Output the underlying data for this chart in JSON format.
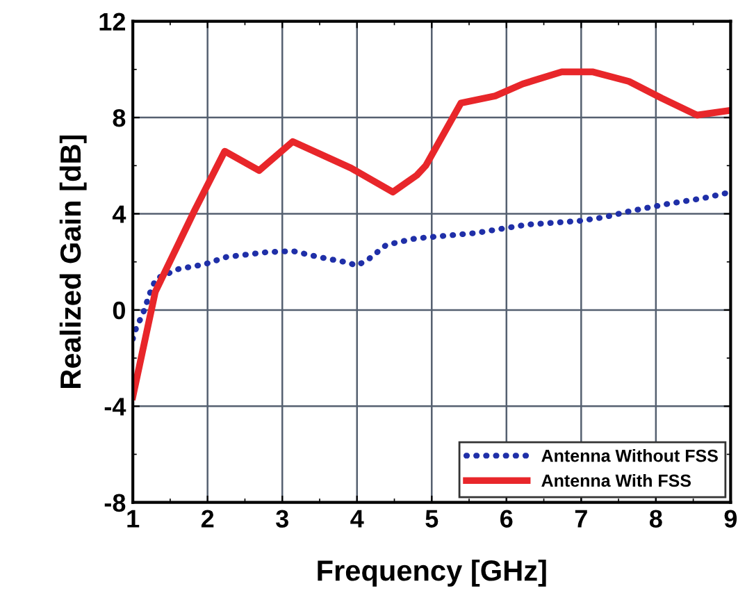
{
  "chart_data": {
    "type": "line",
    "xlabel": "Frequency [GHz]",
    "ylabel": "Realized Gain [dB]",
    "xlim": [
      1,
      9
    ],
    "xticks": [
      1,
      2,
      3,
      4,
      5,
      6,
      7,
      8,
      9
    ],
    "ylim": [
      -8,
      12
    ],
    "yticks": [
      -8,
      -4,
      0,
      4,
      8,
      12
    ],
    "grid": true,
    "legend": "bottom right",
    "series": [
      {
        "name": "Antenna Without FSS",
        "color": "#1f2fa8",
        "line_style": "dotted",
        "x": [
          1,
          1.05,
          1.13,
          1.19,
          1.24,
          1.31,
          1.61,
          1.96,
          2.25,
          2.78,
          3.14,
          3.49,
          3.83,
          4.0,
          4.15,
          4.39,
          4.74,
          4.88,
          5.59,
          6.28,
          6.97,
          7.3,
          7.64,
          8.14,
          8.64,
          9
        ],
        "values": [
          -1.2,
          -0.7,
          -0.2,
          0.35,
          0.8,
          1.3,
          1.7,
          1.9,
          2.2,
          2.4,
          2.45,
          2.2,
          2.0,
          1.85,
          2.1,
          2.7,
          2.95,
          3.0,
          3.2,
          3.55,
          3.7,
          3.85,
          4.1,
          4.4,
          4.65,
          4.9
        ]
      },
      {
        "name": "Antenna With FSS",
        "color": "#e8262a",
        "line_style": "solid",
        "x": [
          1,
          1.3,
          1.82,
          2.23,
          2.69,
          3.14,
          3.92,
          4.48,
          4.8,
          4.92,
          5.39,
          5.85,
          6.22,
          6.74,
          7.15,
          7.64,
          8.08,
          8.55,
          9
        ],
        "values": [
          -3.6,
          0.75,
          4.1,
          6.6,
          5.8,
          7.0,
          5.9,
          4.9,
          5.6,
          6.0,
          8.6,
          8.9,
          9.4,
          9.9,
          9.9,
          9.5,
          8.8,
          8.1,
          8.3
        ]
      }
    ]
  }
}
